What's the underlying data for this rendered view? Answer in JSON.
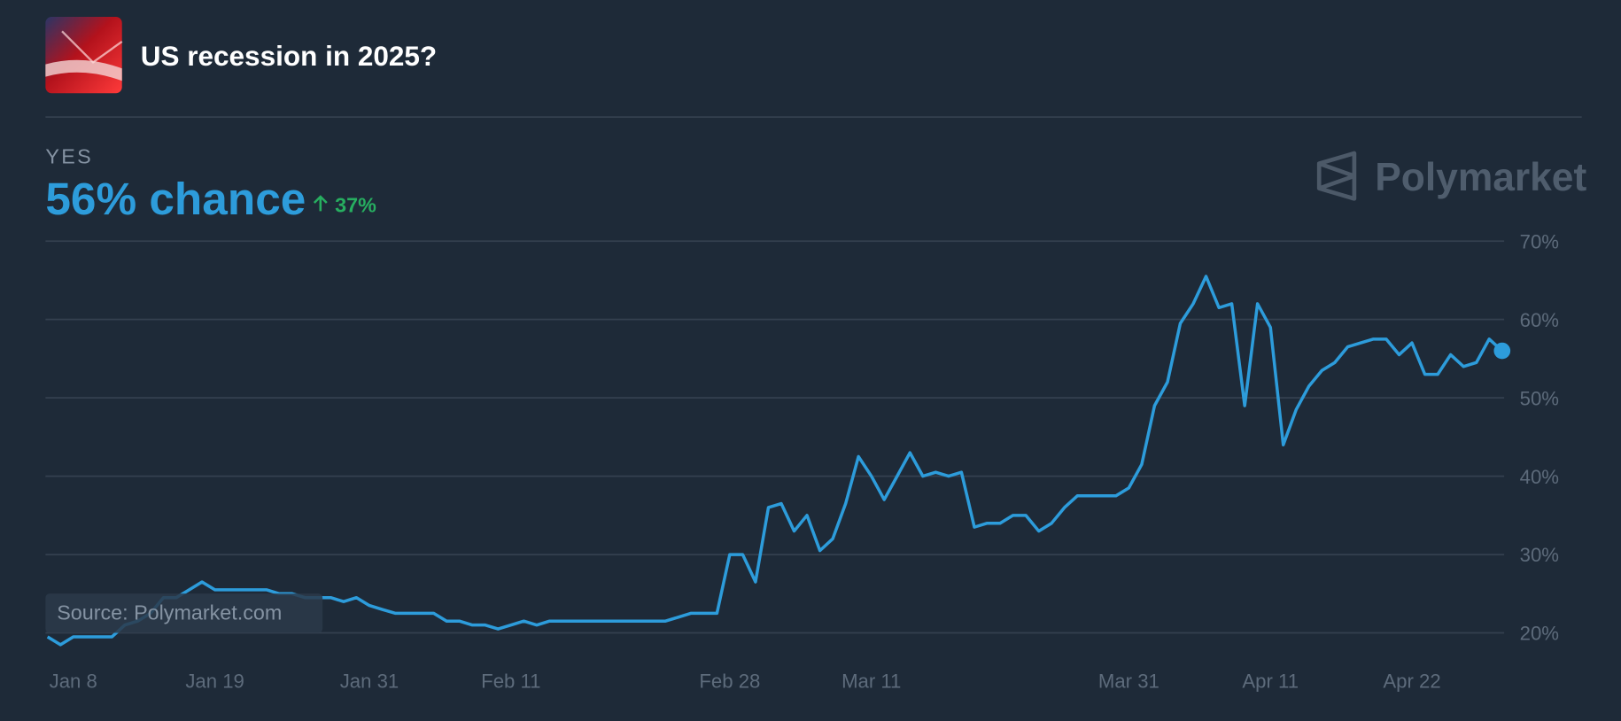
{
  "chart_data": {
    "type": "line",
    "title": "US recession in 2025?",
    "outcome": "YES",
    "headline": "56% chance",
    "change": "37%",
    "brand": "Polymarket",
    "source": "Source: Polymarket.com",
    "x": [
      "Jan 6",
      "Jan 7",
      "Jan 8",
      "Jan 9",
      "Jan 10",
      "Jan 11",
      "Jan 12",
      "Jan 13",
      "Jan 14",
      "Jan 15",
      "Jan 16",
      "Jan 17",
      "Jan 18",
      "Jan 19",
      "Jan 20",
      "Jan 21",
      "Jan 22",
      "Jan 23",
      "Jan 24",
      "Jan 25",
      "Jan 26",
      "Jan 27",
      "Jan 28",
      "Jan 29",
      "Jan 30",
      "Jan 31",
      "Feb 1",
      "Feb 2",
      "Feb 3",
      "Feb 4",
      "Feb 5",
      "Feb 6",
      "Feb 7",
      "Feb 8",
      "Feb 9",
      "Feb 10",
      "Feb 11",
      "Feb 12",
      "Feb 13",
      "Feb 14",
      "Feb 15",
      "Feb 16",
      "Feb 17",
      "Feb 18",
      "Feb 19",
      "Feb 20",
      "Feb 21",
      "Feb 22",
      "Feb 23",
      "Feb 24",
      "Feb 25",
      "Feb 26",
      "Feb 27",
      "Feb 28",
      "Mar 1",
      "Mar 2",
      "Mar 3",
      "Mar 4",
      "Mar 5",
      "Mar 6",
      "Mar 7",
      "Mar 8",
      "Mar 9",
      "Mar 10",
      "Mar 11",
      "Mar 12",
      "Mar 13",
      "Mar 14",
      "Mar 15",
      "Mar 16",
      "Mar 17",
      "Mar 18",
      "Mar 19",
      "Mar 20",
      "Mar 21",
      "Mar 22",
      "Mar 23",
      "Mar 24",
      "Mar 25",
      "Mar 26",
      "Mar 27",
      "Mar 28",
      "Mar 29",
      "Mar 30",
      "Mar 31",
      "Apr 1",
      "Apr 2",
      "Apr 3",
      "Apr 4",
      "Apr 5",
      "Apr 6",
      "Apr 7",
      "Apr 8",
      "Apr 9",
      "Apr 10",
      "Apr 11",
      "Apr 12",
      "Apr 13",
      "Apr 14",
      "Apr 15",
      "Apr 16",
      "Apr 17",
      "Apr 18",
      "Apr 19",
      "Apr 20",
      "Apr 21",
      "Apr 22",
      "Apr 23",
      "Apr 24",
      "Apr 25",
      "Apr 26",
      "Apr 27",
      "Apr 28",
      "Apr 29"
    ],
    "series": [
      {
        "name": "YES",
        "color": "#2d9cdb",
        "values": [
          19.5,
          18.5,
          19.5,
          19.5,
          19.5,
          19.5,
          21,
          21.5,
          22.5,
          24.5,
          24.5,
          25.5,
          26.5,
          25.5,
          25.5,
          25.5,
          25.5,
          25.5,
          25,
          25,
          24.5,
          24.5,
          24.5,
          24,
          24.5,
          23.5,
          23,
          22.5,
          22.5,
          22.5,
          22.5,
          21.5,
          21.5,
          21,
          21,
          20.5,
          21,
          21.5,
          21,
          21.5,
          21.5,
          21.5,
          21.5,
          21.5,
          21.5,
          21.5,
          21.5,
          21.5,
          21.5,
          22,
          22.5,
          22.5,
          22.5,
          30,
          30,
          26.5,
          36,
          36.5,
          33,
          35,
          30.5,
          32,
          36.5,
          42.5,
          40,
          37,
          40,
          43,
          40,
          40.5,
          40,
          40.5,
          33.5,
          34,
          34,
          35,
          35,
          33,
          34,
          36,
          37.5,
          37.5,
          37.5,
          37.5,
          38.5,
          41.5,
          49,
          52,
          59.5,
          62,
          65.5,
          61.5,
          62,
          49,
          62,
          59,
          44,
          48.5,
          51.5,
          53.5,
          54.5,
          56.5,
          57,
          57.5,
          57.5,
          55.5,
          57,
          53,
          53,
          55.5,
          54,
          54.5,
          57.5,
          56
        ]
      }
    ],
    "xticks": [
      "Jan 8",
      "Jan 19",
      "Jan 31",
      "Feb 11",
      "Feb 28",
      "Mar 11",
      "Mar 31",
      "Apr 11",
      "Apr 22"
    ],
    "ylim": [
      20,
      70
    ],
    "yticks": [
      {
        "value": 20,
        "label": "20%"
      },
      {
        "value": 30,
        "label": "30%"
      },
      {
        "value": 40,
        "label": "40%"
      },
      {
        "value": 50,
        "label": "50%"
      },
      {
        "value": 60,
        "label": "60%"
      },
      {
        "value": 70,
        "label": "70%"
      }
    ],
    "grid": true
  }
}
